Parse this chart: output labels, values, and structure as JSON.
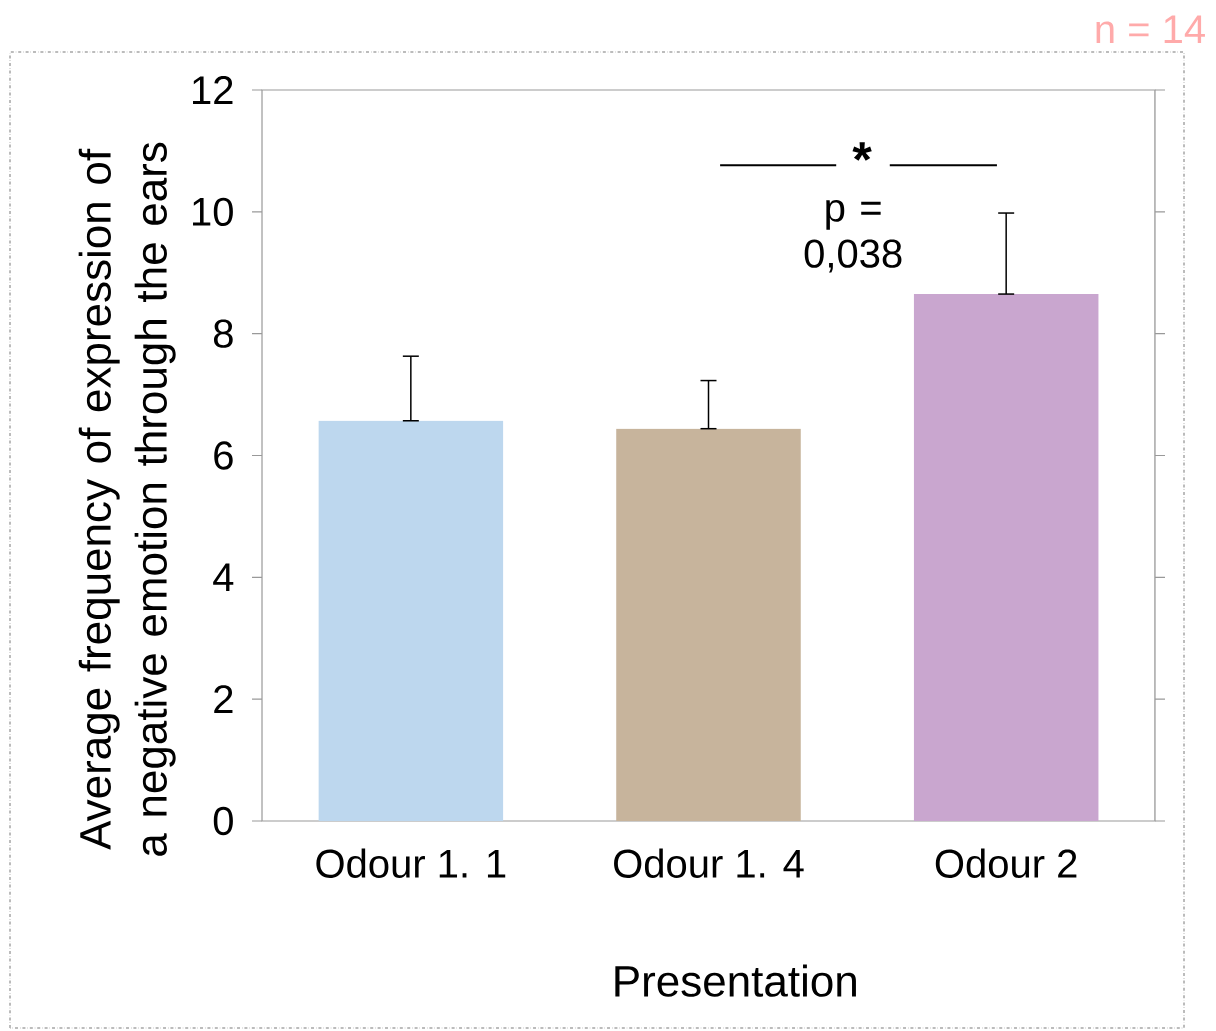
{
  "chart_data": {
    "type": "bar",
    "categories": [
      "Odour 1. 1",
      "Odour 1. 4",
      "Odour 2"
    ],
    "values": [
      6.57,
      6.44,
      8.65
    ],
    "colors": [
      "#bdd7ee",
      "#c7b49c",
      "#c9a6cf"
    ],
    "errors": [
      [
        6.57,
        7.63
      ],
      [
        6.44,
        7.23
      ],
      [
        8.65,
        9.98
      ]
    ],
    "xlabel": "Presentation",
    "ylabel": "Average frequency of expression of a negative emotion through the ears",
    "ylim": [
      0,
      12
    ],
    "yticks": [
      0,
      2,
      4,
      6,
      8,
      10,
      12
    ],
    "annotations": [
      "n = 14",
      "*",
      "p = 0,038"
    ]
  }
}
